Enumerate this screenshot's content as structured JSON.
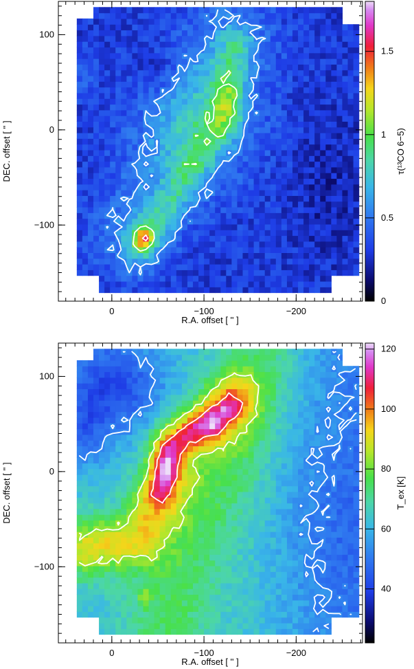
{
  "chart_data": [
    {
      "type": "heatmap",
      "title": "",
      "xlabel": "R.A. offset [ '' ]",
      "ylabel": "DEC. offset [ '' ]",
      "x_reversed": true,
      "xlim": [
        58,
        -272
      ],
      "ylim": [
        -180,
        135
      ],
      "x_ticks": [
        0,
        -100,
        -200
      ],
      "x_tick_labels": [
        "0",
        "−100",
        "−200"
      ],
      "y_ticks": [
        -100,
        0,
        100
      ],
      "y_tick_labels": [
        "−100",
        "0",
        "100"
      ],
      "colorbar": {
        "label": "τ(¹³CO 6−5)",
        "range": [
          0,
          1.8
        ],
        "ticks": [
          0,
          0.5,
          1,
          1.5
        ],
        "tick_labels": [
          "0",
          "0.5",
          "1",
          "1.5"
        ]
      },
      "colormap": "rainbow (black-blue-cyan-green-yellow-red-magenta-white)",
      "contours": "white"
    },
    {
      "type": "heatmap",
      "title": "",
      "xlabel": "R.A. offset [ '' ]",
      "ylabel": "DEC. offset [ '' ]",
      "x_reversed": true,
      "xlim": [
        58,
        -272
      ],
      "ylim": [
        -180,
        135
      ],
      "x_ticks": [
        0,
        -100,
        -200
      ],
      "x_tick_labels": [
        "0",
        "−100",
        "−200"
      ],
      "y_ticks": [
        -100,
        0,
        100
      ],
      "y_tick_labels": [
        "−100",
        "0",
        "100"
      ],
      "colorbar": {
        "label": "T_ex [K]",
        "range": [
          22,
          122
        ],
        "ticks": [
          40,
          60,
          80,
          100,
          120
        ],
        "tick_labels": [
          "40",
          "60",
          "80",
          "100",
          "120"
        ]
      },
      "colormap": "rainbow (black-blue-cyan-green-yellow-red-magenta-white)",
      "contours": "white"
    }
  ]
}
